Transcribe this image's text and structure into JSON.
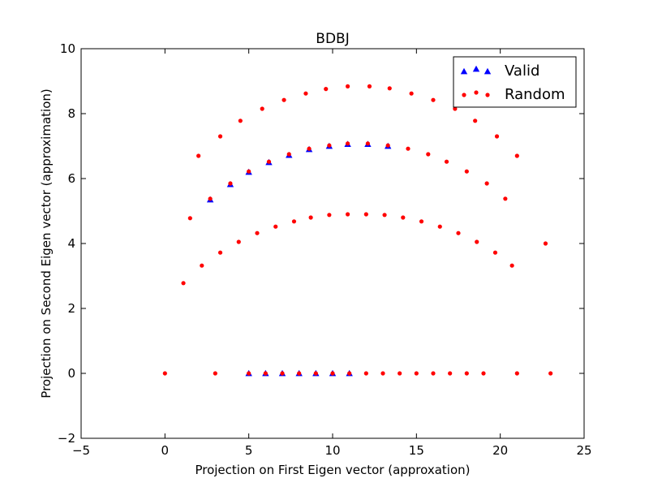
{
  "chart_data": {
    "type": "scatter",
    "title": "BDBJ",
    "xlabel": "Projection on First Eigen vector (approxation)",
    "ylabel": "Projection on Second Eigen vector (approximation)",
    "xlim": [
      -5,
      25
    ],
    "ylim": [
      -2,
      10
    ],
    "xticks": [
      -5,
      0,
      5,
      10,
      15,
      20,
      25
    ],
    "yticks": [
      -2,
      0,
      2,
      4,
      6,
      8,
      10
    ],
    "grid": false,
    "legend_position": "top-right",
    "series": [
      {
        "name": "Valid",
        "marker": "triangle",
        "color": "#0000ff",
        "points": [
          [
            2.7,
            5.35
          ],
          [
            3.9,
            5.82
          ],
          [
            5.0,
            6.2
          ],
          [
            6.2,
            6.5
          ],
          [
            7.4,
            6.72
          ],
          [
            8.6,
            6.9
          ],
          [
            9.8,
            7.0
          ],
          [
            10.9,
            7.06
          ],
          [
            12.1,
            7.06
          ],
          [
            13.3,
            7.0
          ],
          [
            5.0,
            0
          ],
          [
            6.0,
            0
          ],
          [
            7.0,
            0
          ],
          [
            8.0,
            0
          ],
          [
            9.0,
            0
          ],
          [
            10.0,
            0
          ],
          [
            11.0,
            0
          ]
        ]
      },
      {
        "name": "Random",
        "marker": "circle",
        "color": "#ff0000",
        "points": [
          [
            2.0,
            6.7
          ],
          [
            3.3,
            7.3
          ],
          [
            4.5,
            7.78
          ],
          [
            5.8,
            8.15
          ],
          [
            7.1,
            8.42
          ],
          [
            8.4,
            8.62
          ],
          [
            9.6,
            8.76
          ],
          [
            10.9,
            8.84
          ],
          [
            12.2,
            8.84
          ],
          [
            13.4,
            8.78
          ],
          [
            14.7,
            8.62
          ],
          [
            16.0,
            8.42
          ],
          [
            17.3,
            8.15
          ],
          [
            18.5,
            7.78
          ],
          [
            19.8,
            7.3
          ],
          [
            21.0,
            6.7
          ],
          [
            1.5,
            4.78
          ],
          [
            2.7,
            5.38
          ],
          [
            3.9,
            5.85
          ],
          [
            5.0,
            6.22
          ],
          [
            6.2,
            6.52
          ],
          [
            7.4,
            6.75
          ],
          [
            8.6,
            6.92
          ],
          [
            9.8,
            7.02
          ],
          [
            10.9,
            7.08
          ],
          [
            12.1,
            7.08
          ],
          [
            13.3,
            7.02
          ],
          [
            14.5,
            6.92
          ],
          [
            15.7,
            6.75
          ],
          [
            16.8,
            6.52
          ],
          [
            18.0,
            6.22
          ],
          [
            19.2,
            5.85
          ],
          [
            20.3,
            5.38
          ],
          [
            1.1,
            2.78
          ],
          [
            2.2,
            3.32
          ],
          [
            3.3,
            3.72
          ],
          [
            4.4,
            4.05
          ],
          [
            5.5,
            4.32
          ],
          [
            6.6,
            4.52
          ],
          [
            7.7,
            4.68
          ],
          [
            8.7,
            4.8
          ],
          [
            9.8,
            4.88
          ],
          [
            10.9,
            4.9
          ],
          [
            12.0,
            4.9
          ],
          [
            13.1,
            4.88
          ],
          [
            14.2,
            4.8
          ],
          [
            15.3,
            4.68
          ],
          [
            16.4,
            4.52
          ],
          [
            17.5,
            4.32
          ],
          [
            18.6,
            4.05
          ],
          [
            19.7,
            3.72
          ],
          [
            20.7,
            3.32
          ],
          [
            22.7,
            4.0
          ],
          [
            0,
            0
          ],
          [
            3,
            0
          ],
          [
            5,
            0
          ],
          [
            6,
            0
          ],
          [
            7,
            0
          ],
          [
            8,
            0
          ],
          [
            9,
            0
          ],
          [
            10,
            0
          ],
          [
            11,
            0
          ],
          [
            12,
            0
          ],
          [
            13,
            0
          ],
          [
            14,
            0
          ],
          [
            15,
            0
          ],
          [
            16,
            0
          ],
          [
            17,
            0
          ],
          [
            18,
            0
          ],
          [
            19,
            0
          ],
          [
            21,
            0
          ],
          [
            23,
            0
          ]
        ]
      }
    ]
  }
}
